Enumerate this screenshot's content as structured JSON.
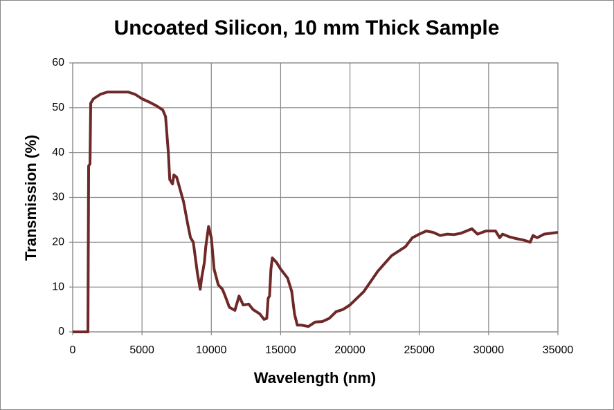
{
  "chart_data": {
    "type": "line",
    "title": "Uncoated Silicon, 10 mm Thick Sample",
    "x_label": "Wavelength (nm)",
    "y_label": "Transmission (%)",
    "xlim": [
      0,
      35000
    ],
    "ylim": [
      0,
      60
    ],
    "xticks": [
      0,
      5000,
      10000,
      15000,
      20000,
      25000,
      30000,
      35000
    ],
    "yticks": [
      0,
      10,
      20,
      30,
      40,
      50,
      60
    ],
    "grid": true,
    "x": [
      0,
      1000,
      1100,
      1150,
      1250,
      1300,
      1500,
      2000,
      2500,
      3000,
      4000,
      4500,
      5000,
      5500,
      6000,
      6500,
      6700,
      6900,
      7000,
      7200,
      7300,
      7500,
      8000,
      8300,
      8500,
      8700,
      9000,
      9200,
      9300,
      9500,
      9600,
      9800,
      10000,
      10200,
      10500,
      10800,
      11000,
      11300,
      11700,
      12000,
      12300,
      12700,
      13000,
      13500,
      13800,
      14000,
      14100,
      14200,
      14300,
      14400,
      14700,
      15000,
      15500,
      15800,
      16000,
      16200,
      16500,
      17000,
      17500,
      18000,
      18500,
      19000,
      19500,
      20000,
      21000,
      22000,
      23000,
      24000,
      24500,
      25000,
      25500,
      26000,
      26500,
      27000,
      27500,
      28000,
      28800,
      29200,
      29800,
      30500,
      30800,
      31000,
      31500,
      32000,
      32500,
      33000,
      33200,
      33500,
      34000,
      34500,
      35000
    ],
    "series": [
      {
        "name": "Transmission",
        "color": "#6e2828",
        "values": [
          0,
          0,
          0,
          37,
          37.5,
          51,
          52,
          53,
          53.5,
          53.5,
          53.5,
          53,
          52,
          51.3,
          50.5,
          49.5,
          48,
          40,
          34,
          33,
          35,
          34.5,
          29,
          24,
          21,
          20,
          13,
          9.5,
          12,
          15.5,
          19,
          23.5,
          21,
          14,
          10.5,
          9.5,
          8,
          5.5,
          4.8,
          8,
          6,
          6.2,
          5,
          4,
          2.8,
          3,
          7.5,
          8,
          14,
          16.5,
          15.5,
          14,
          12,
          9,
          4,
          1.5,
          1.5,
          1.2,
          2.2,
          2.3,
          3,
          4.5,
          5,
          6,
          9,
          13.5,
          17,
          19,
          21,
          21.8,
          22.5,
          22.2,
          21.5,
          21.8,
          21.7,
          22,
          23,
          21.8,
          22.5,
          22.5,
          21,
          21.8,
          21.2,
          20.8,
          20.5,
          20,
          21.5,
          21,
          21.8,
          22,
          22.2
        ]
      }
    ]
  }
}
